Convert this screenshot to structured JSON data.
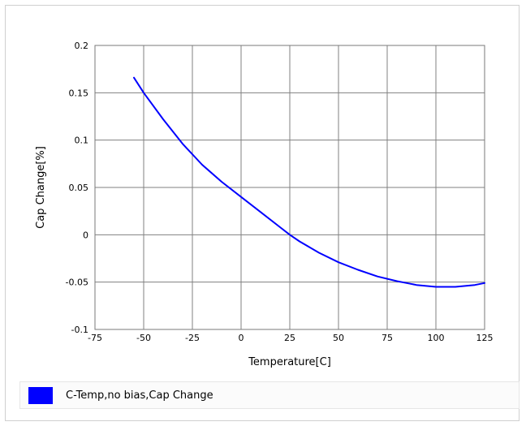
{
  "chart_data": {
    "type": "line",
    "title": "",
    "xlabel": "Temperature[C]",
    "ylabel": "Cap Change[%]",
    "xlim": [
      -75,
      125
    ],
    "ylim": [
      -0.1,
      0.2
    ],
    "x_ticks": [
      -75,
      -50,
      -25,
      0,
      25,
      50,
      75,
      100,
      125
    ],
    "x_tick_labels": [
      "-75",
      "-50",
      "-25",
      "0",
      "25",
      "50",
      "75",
      "100",
      "125"
    ],
    "y_ticks": [
      -0.1,
      -0.05,
      0,
      0.05,
      0.1,
      0.15,
      0.2
    ],
    "y_tick_labels": [
      "-0.1",
      "-0.05",
      "0",
      "0.05",
      "0.1",
      "0.15",
      "0.2"
    ],
    "grid": true,
    "legend_position": "bottom",
    "series": [
      {
        "name": "C-Temp,no bias,Cap Change",
        "color": "#0000ff",
        "x": [
          -55,
          -50,
          -40,
          -30,
          -20,
          -10,
          0,
          10,
          20,
          25,
          30,
          40,
          50,
          60,
          70,
          80,
          85,
          90,
          100,
          110,
          120,
          125
        ],
        "y": [
          0.166,
          0.15,
          0.122,
          0.096,
          0.074,
          0.056,
          0.04,
          0.024,
          0.008,
          0.0,
          -0.007,
          -0.019,
          -0.029,
          -0.037,
          -0.044,
          -0.049,
          -0.051,
          -0.053,
          -0.055,
          -0.055,
          -0.053,
          -0.051
        ]
      }
    ]
  }
}
